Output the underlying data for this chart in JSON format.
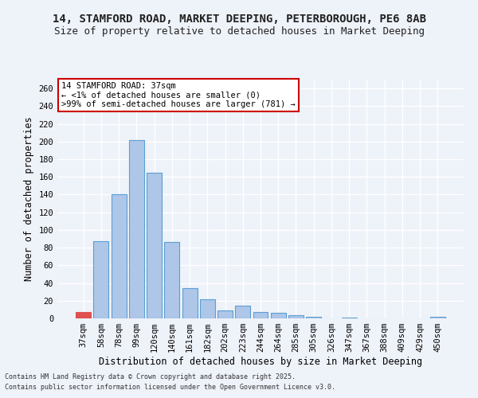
{
  "title_line1": "14, STAMFORD ROAD, MARKET DEEPING, PETERBOROUGH, PE6 8AB",
  "title_line2": "Size of property relative to detached houses in Market Deeping",
  "xlabel": "Distribution of detached houses by size in Market Deeping",
  "ylabel": "Number of detached properties",
  "categories": [
    "37sqm",
    "58sqm",
    "78sqm",
    "99sqm",
    "120sqm",
    "140sqm",
    "161sqm",
    "182sqm",
    "202sqm",
    "223sqm",
    "244sqm",
    "264sqm",
    "285sqm",
    "305sqm",
    "326sqm",
    "347sqm",
    "367sqm",
    "388sqm",
    "409sqm",
    "429sqm",
    "450sqm"
  ],
  "values": [
    7,
    87,
    140,
    202,
    165,
    86,
    34,
    22,
    9,
    14,
    7,
    6,
    4,
    2,
    0,
    1,
    0,
    0,
    0,
    0,
    2
  ],
  "highlight_index": 0,
  "bar_color": "#aec6e8",
  "bar_edge_color": "#5a9fd4",
  "highlight_bar_color": "#e05050",
  "ylim": [
    0,
    270
  ],
  "yticks": [
    0,
    20,
    40,
    60,
    80,
    100,
    120,
    140,
    160,
    180,
    200,
    220,
    240,
    260
  ],
  "annotation_title": "14 STAMFORD ROAD: 37sqm",
  "annotation_line1": "← <1% of detached houses are smaller (0)",
  "annotation_line2": ">99% of semi-detached houses are larger (781) →",
  "annotation_box_color": "#ffffff",
  "annotation_box_edge_color": "#cc0000",
  "footnote_line1": "Contains HM Land Registry data © Crown copyright and database right 2025.",
  "footnote_line2": "Contains public sector information licensed under the Open Government Licence v3.0.",
  "bg_color": "#eef2f9",
  "grid_color": "#ffffff",
  "title_fontsize": 10,
  "subtitle_fontsize": 9,
  "tick_fontsize": 7.5,
  "label_fontsize": 8.5,
  "annotation_fontsize": 7.5,
  "footnote_fontsize": 6
}
